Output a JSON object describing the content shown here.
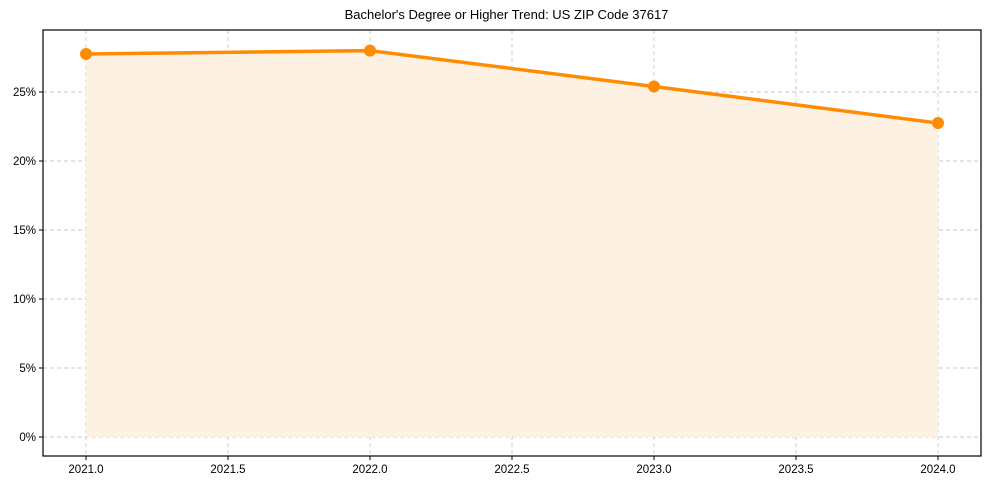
{
  "chart_data": {
    "type": "line",
    "title": "Bachelor's Degree or Higher Trend: US ZIP Code 37617",
    "xlabel": "",
    "ylabel": "",
    "x": [
      2021,
      2022,
      2023,
      2024
    ],
    "series": [
      {
        "name": "Bachelor's Degree or Higher",
        "values": [
          27.75,
          28.0,
          25.4,
          22.75
        ],
        "unit": "%",
        "color": "#ff8c00",
        "marker": "circle",
        "fill_to_zero": true,
        "fill_color": "#fdf1e4"
      }
    ],
    "xlim": [
      2020.85,
      2024.15
    ],
    "ylim": [
      -1.4,
      29.5
    ],
    "x_ticks": [
      2021.0,
      2021.5,
      2022.0,
      2022.5,
      2023.0,
      2023.5,
      2024.0
    ],
    "x_tick_labels": [
      "2021.0",
      "2021.5",
      "2022.0",
      "2022.5",
      "2023.0",
      "2023.5",
      "2024.0"
    ],
    "y_ticks": [
      0,
      5,
      10,
      15,
      20,
      25
    ],
    "y_tick_labels": [
      "0%",
      "5%",
      "10%",
      "15%",
      "20%",
      "25%"
    ],
    "grid": true,
    "grid_style": "dashed",
    "legend": null
  }
}
